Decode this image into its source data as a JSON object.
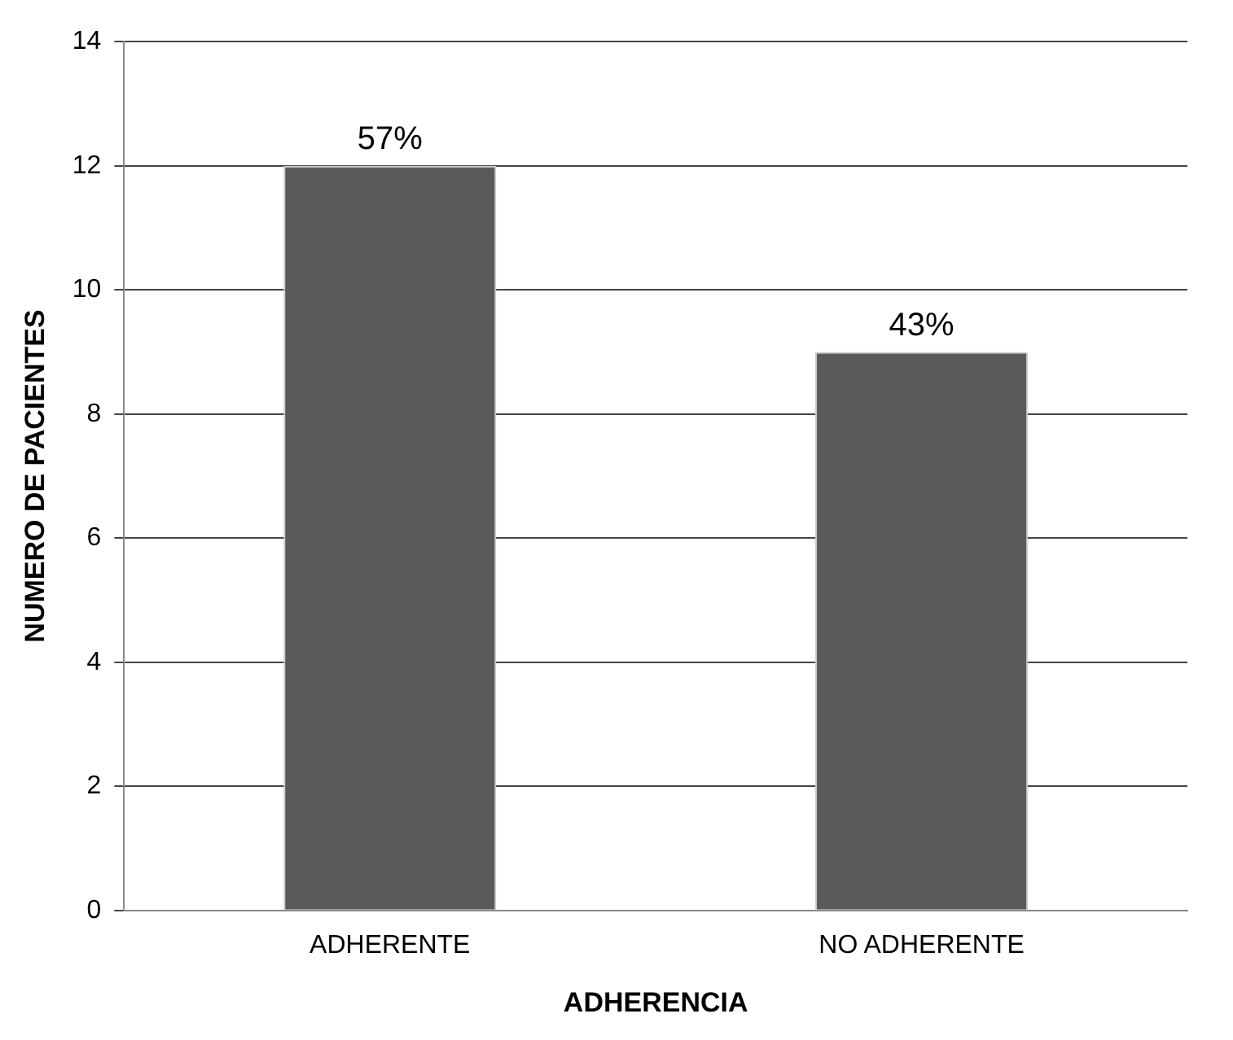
{
  "chart_data": {
    "type": "bar",
    "xlabel": "ADHERENCIA",
    "ylabel": "NUMERO DE PACIENTES",
    "categories": [
      "ADHERENTE",
      "NO ADHERENTE"
    ],
    "values": [
      12,
      9
    ],
    "color": "#5a5a5a",
    "annotations": [
      {
        "text": "57%",
        "x": "ADHERENTE",
        "y": 12
      },
      {
        "text": "43%",
        "x": "NO ADHERENTE",
        "y": 9
      }
    ],
    "ylim": [
      0,
      14
    ],
    "yticks": [
      0,
      2,
      4,
      6,
      8,
      10,
      12,
      14
    ],
    "grid": "y",
    "legend": false
  }
}
